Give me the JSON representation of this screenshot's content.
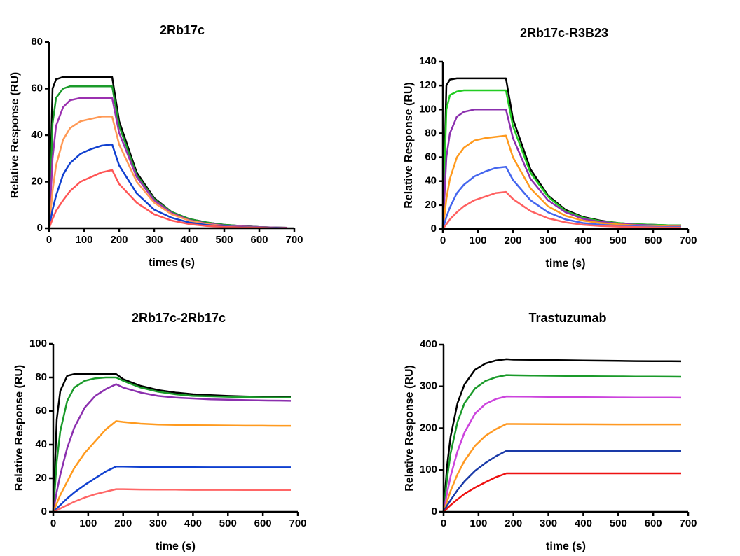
{
  "chart_data": [
    {
      "type": "line",
      "title": "2Rb17c",
      "x_label": "times (s)",
      "y_label": "Relative Response (RU)",
      "x": [
        0,
        10,
        20,
        40,
        60,
        90,
        120,
        150,
        180,
        200,
        250,
        300,
        350,
        400,
        450,
        500,
        550,
        600,
        650,
        680
      ],
      "xlim": [
        0,
        700
      ],
      "xticks": [
        0,
        100,
        200,
        300,
        400,
        500,
        600,
        700
      ],
      "ylim": [
        0,
        80
      ],
      "yticks": [
        0,
        20,
        40,
        60,
        80
      ],
      "series": [
        {
          "color": "#000000",
          "values": [
            0,
            60,
            64,
            65,
            65,
            65,
            65,
            65,
            65,
            46,
            24,
            13,
            7,
            4,
            2.5,
            1.5,
            1,
            0.5,
            0.3,
            0.2
          ]
        },
        {
          "color": "#1a9a2a",
          "values": [
            0,
            45,
            56,
            60,
            61,
            61,
            61,
            61,
            61,
            44,
            23,
            12.5,
            7,
            4,
            2.5,
            1.5,
            1,
            0.5,
            0.3,
            0.2
          ]
        },
        {
          "color": "#9b30b0",
          "values": [
            0,
            30,
            44,
            52,
            55,
            56,
            56,
            56,
            56,
            41,
            22,
            12,
            6.5,
            3.5,
            2,
            1.2,
            0.8,
            0.5,
            0.3,
            0.2
          ]
        },
        {
          "color": "#ff9955",
          "values": [
            0,
            16,
            27,
            38,
            43,
            46,
            47,
            48,
            48,
            36,
            20,
            11,
            6,
            3.3,
            1.8,
            1,
            0.6,
            0.4,
            0.2,
            0.1
          ]
        },
        {
          "color": "#1040d0",
          "values": [
            0,
            8,
            14,
            23,
            28,
            32,
            34,
            35.5,
            36,
            27,
            15,
            8,
            4.5,
            2.5,
            1.4,
            0.8,
            0.5,
            0.3,
            0.2,
            0.1
          ]
        },
        {
          "color": "#ff5555",
          "values": [
            0,
            4,
            7.5,
            12,
            16,
            20,
            22,
            24,
            25,
            19,
            11,
            6,
            3.3,
            1.8,
            1,
            0.6,
            0.4,
            0.2,
            0.1,
            0.1
          ]
        }
      ]
    },
    {
      "type": "line",
      "title": "2Rb17c-R3B23",
      "x_label": "time (s)",
      "y_label": "Relative Response (RU)",
      "x": [
        0,
        10,
        20,
        40,
        60,
        90,
        120,
        150,
        180,
        200,
        250,
        300,
        350,
        400,
        450,
        500,
        550,
        600,
        650,
        680
      ],
      "xlim": [
        0,
        700
      ],
      "xticks": [
        0,
        100,
        200,
        300,
        400,
        500,
        600,
        700
      ],
      "ylim": [
        0,
        140
      ],
      "yticks": [
        0,
        20,
        40,
        60,
        80,
        100,
        120,
        140
      ],
      "series": [
        {
          "color": "#000000",
          "values": [
            0,
            120,
            125,
            126,
            126,
            126,
            126,
            126,
            126,
            92,
            50,
            28,
            16,
            10,
            7,
            5,
            4,
            3.5,
            3,
            3
          ]
        },
        {
          "color": "#22cc22",
          "values": [
            0,
            100,
            112,
            115,
            116,
            116,
            116,
            116,
            116,
            86,
            47,
            27,
            15,
            9.5,
            6.5,
            5,
            4,
            3.5,
            3,
            3
          ]
        },
        {
          "color": "#8b2fae",
          "values": [
            0,
            60,
            80,
            94,
            98,
            100,
            100,
            100,
            100,
            76,
            42,
            24,
            14,
            8.5,
            6,
            4.5,
            3.5,
            3,
            2.5,
            2.5
          ]
        },
        {
          "color": "#ff9a1e",
          "values": [
            0,
            25,
            42,
            60,
            68,
            74,
            76,
            77,
            78,
            60,
            34,
            19,
            11,
            7,
            5,
            3.8,
            3,
            2.5,
            2,
            2
          ]
        },
        {
          "color": "#4466ee",
          "values": [
            0,
            10,
            18,
            30,
            37,
            44,
            48,
            51,
            52,
            41,
            24,
            14,
            8,
            5,
            3.5,
            2.7,
            2.2,
            1.8,
            1.5,
            1.5
          ]
        },
        {
          "color": "#ff6060",
          "values": [
            0,
            4,
            8,
            14,
            19,
            24,
            27,
            30,
            31,
            25,
            15,
            9,
            5.5,
            3.5,
            2.5,
            2,
            1.6,
            1.3,
            1.1,
            1
          ]
        }
      ]
    },
    {
      "type": "line",
      "title": "2Rb17c-2Rb17c",
      "x_label": "time (s)",
      "y_label": "Relative Response (RU)",
      "x": [
        0,
        10,
        20,
        40,
        60,
        90,
        120,
        150,
        180,
        200,
        250,
        300,
        350,
        400,
        450,
        500,
        550,
        600,
        650,
        680
      ],
      "xlim": [
        0,
        700
      ],
      "xticks": [
        0,
        100,
        200,
        300,
        400,
        500,
        600,
        700
      ],
      "ylim": [
        0,
        100
      ],
      "yticks": [
        0,
        20,
        40,
        60,
        80,
        100
      ],
      "series": [
        {
          "color": "#000000",
          "values": [
            0,
            55,
            72,
            81,
            82,
            82,
            82,
            82,
            82,
            79,
            75,
            72.5,
            71,
            70,
            69.5,
            69,
            68.7,
            68.5,
            68.3,
            68.2
          ]
        },
        {
          "color": "#1a9a2a",
          "values": [
            0,
            30,
            48,
            66,
            74,
            78,
            79.5,
            80,
            80,
            78,
            74,
            71.5,
            70,
            69,
            68.8,
            68.5,
            68.3,
            68.1,
            68,
            68
          ]
        },
        {
          "color": "#8b2fae",
          "values": [
            0,
            12,
            22,
            38,
            50,
            62,
            69,
            73,
            76,
            74,
            71,
            69,
            68,
            67.5,
            67,
            66.8,
            66.5,
            66.3,
            66.2,
            66.1
          ]
        },
        {
          "color": "#ff9a1e",
          "values": [
            0,
            5,
            10,
            18,
            26,
            35,
            42,
            49,
            54,
            53.5,
            52.5,
            52,
            51.8,
            51.6,
            51.5,
            51.4,
            51.3,
            51.3,
            51.2,
            51.2
          ]
        },
        {
          "color": "#1040d0",
          "values": [
            0,
            2,
            4,
            8,
            11.5,
            16,
            20,
            24,
            27,
            27,
            26.8,
            26.7,
            26.6,
            26.6,
            26.5,
            26.5,
            26.5,
            26.5,
            26.5,
            26.5
          ]
        },
        {
          "color": "#ff6666",
          "values": [
            0,
            1,
            2,
            4,
            6,
            8.5,
            10.5,
            12,
            13.5,
            13.5,
            13.3,
            13.2,
            13.2,
            13.1,
            13.1,
            13.1,
            13,
            13,
            13,
            13
          ]
        }
      ]
    },
    {
      "type": "line",
      "title": "Trastuzumab",
      "x_label": "time (s)",
      "y_label": "Relative Response (RU)",
      "x": [
        0,
        10,
        20,
        40,
        60,
        90,
        120,
        150,
        180,
        200,
        250,
        300,
        350,
        400,
        450,
        500,
        550,
        600,
        650,
        680
      ],
      "xlim": [
        0,
        700
      ],
      "xticks": [
        0,
        100,
        200,
        300,
        400,
        500,
        600,
        700
      ],
      "ylim": [
        0,
        400
      ],
      "yticks": [
        0,
        100,
        200,
        300,
        400
      ],
      "series": [
        {
          "color": "#000000",
          "values": [
            0,
            110,
            180,
            260,
            305,
            340,
            355,
            362,
            365,
            364,
            363.5,
            363,
            362.5,
            362,
            361.5,
            361,
            360.5,
            360.3,
            360.1,
            360
          ]
        },
        {
          "color": "#1a9a2a",
          "values": [
            0,
            80,
            140,
            215,
            260,
            295,
            313,
            322,
            327,
            326.5,
            326,
            325.5,
            325,
            324.5,
            324,
            323.8,
            323.5,
            323.3,
            323.1,
            323
          ]
        },
        {
          "color": "#cc44dd",
          "values": [
            0,
            45,
            85,
            145,
            190,
            235,
            258,
            270,
            276,
            275.8,
            275.5,
            275,
            274.5,
            274,
            273.8,
            273.5,
            273.3,
            273.2,
            273.1,
            273
          ]
        },
        {
          "color": "#ff9922",
          "values": [
            0,
            25,
            50,
            90,
            122,
            158,
            182,
            198,
            210,
            210,
            209.8,
            209.6,
            209.4,
            209.3,
            209.2,
            209.1,
            209,
            209,
            209,
            209
          ]
        },
        {
          "color": "#1a3aa8",
          "values": [
            0,
            15,
            28,
            52,
            73,
            98,
            117,
            133,
            146,
            146,
            146,
            146,
            146,
            146,
            146,
            146,
            146,
            146,
            146,
            146
          ]
        },
        {
          "color": "#ee1111",
          "values": [
            0,
            8,
            16,
            30,
            43,
            58,
            71,
            83,
            92,
            92,
            92,
            92,
            92,
            92,
            92,
            92,
            92,
            92,
            92,
            92
          ]
        }
      ]
    }
  ]
}
